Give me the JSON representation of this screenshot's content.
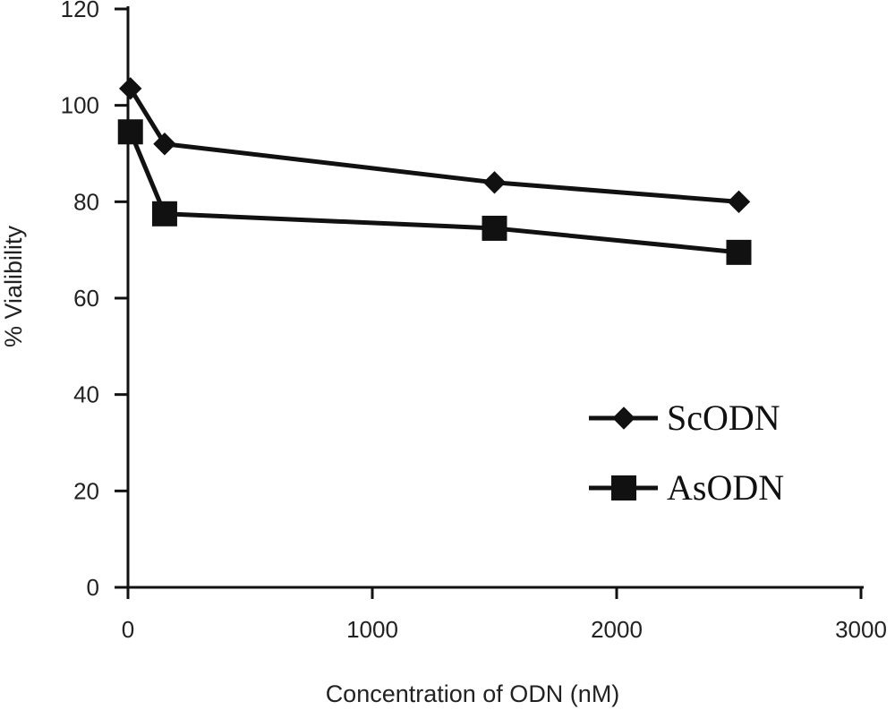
{
  "chart_data": {
    "type": "line",
    "title": "",
    "xlabel": "Concentration of ODN (nM)",
    "ylabel": "% Vialibility",
    "xlim": [
      0,
      3000
    ],
    "ylim": [
      0,
      120
    ],
    "x_ticks": [
      0,
      1000,
      2000,
      3000
    ],
    "y_ticks": [
      0,
      20,
      40,
      60,
      80,
      100,
      120
    ],
    "grid": false,
    "legend_position": "right",
    "series": [
      {
        "name": "ScODN",
        "marker": "diamond",
        "color": "#111111",
        "x": [
          10,
          150,
          1500,
          2500
        ],
        "y": [
          103.5,
          92,
          84,
          80
        ]
      },
      {
        "name": "AsODN",
        "marker": "square",
        "color": "#111111",
        "x": [
          10,
          150,
          1500,
          2500
        ],
        "y": [
          94.5,
          77.5,
          74.5,
          69.5
        ]
      }
    ]
  }
}
